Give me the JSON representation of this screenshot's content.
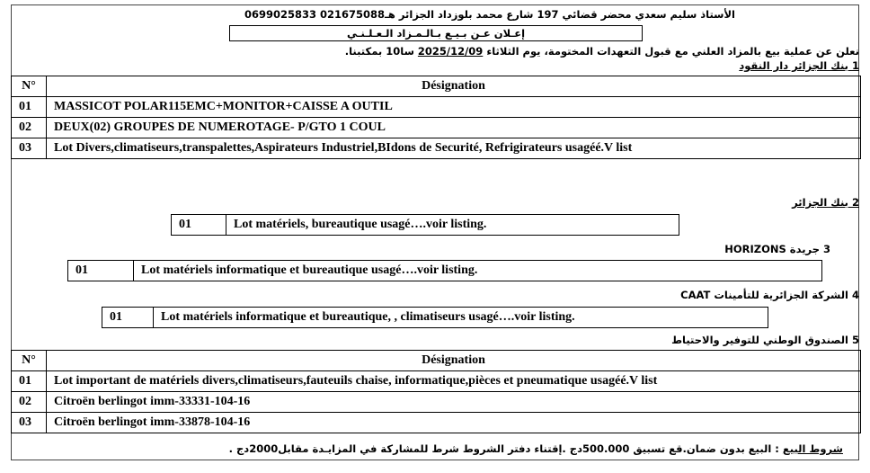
{
  "header": {
    "notary_line": "الأستاذ سليم سعدي  محضر قضائي 197 شارع محمد بلوزداد الجزائر هـ021675088 0699025833",
    "title": "إعـلان عـن بـيـع بـالـمـزاد الـعـلـنـي",
    "announcement_prefix": "نعلن عن عملية بيع بالمزاد العلني مع قبول التعهدات المختومة، يوم الثلاثاء ",
    "date": "2025/12/09",
    "announcement_suffix": " سا10 بمكتبنا."
  },
  "sections": [
    {
      "heading": "1 بنك الجزائر دار النقود",
      "columns": [
        "N°",
        "Désignation"
      ],
      "rows": [
        [
          "01",
          "MASSICOT POLAR115EMC+MONITOR+CAISSE A OUTIL"
        ],
        [
          "02",
          "DEUX(02) GROUPES DE NUMEROTAGE- P/GTO 1 COUL"
        ],
        [
          "03",
          "Lot Divers,climatiseurs,transpalettes,Aspirateurs Industriel,BIdons de Securité, Refrigirateurs usagéé.V list"
        ]
      ]
    },
    {
      "heading": "2 بنك الجزائر",
      "rows": [
        [
          "01",
          "Lot matériels, bureautique usagé….voir listing."
        ]
      ]
    },
    {
      "heading": "3 جريدة HORIZONS",
      "rows": [
        [
          "01",
          "Lot matériels informatique et bureautique usagé….voir listing."
        ]
      ]
    },
    {
      "heading": "4 الشركة الجزائرية للتأمينات CAAT",
      "rows": [
        [
          "01",
          "Lot matériels informatique et bureautique, , climatiseurs usagé….voir listing."
        ]
      ]
    },
    {
      "heading": "5 الصندوق الوطني للتوفير والاحتياط",
      "columns": [
        "N°",
        "Désignation"
      ],
      "rows": [
        [
          "01",
          "Lot important de matériels divers,climatiseurs,fauteuils chaise, informatique,pièces et pneumatique usagéé.V list"
        ],
        [
          "02",
          "Citroën berlingot imm-33331-104-16"
        ],
        [
          "03",
          "Citroën berlingot imm-33878-104-16"
        ]
      ]
    }
  ],
  "conditions": {
    "label": "شروط البيع",
    "text": " : البيع بدون ضمان.قع تسبيق 500.000دج .إقتناء دفتر الشروط شرط للمشاركة في المزايـدة مقابل2000دج ."
  }
}
